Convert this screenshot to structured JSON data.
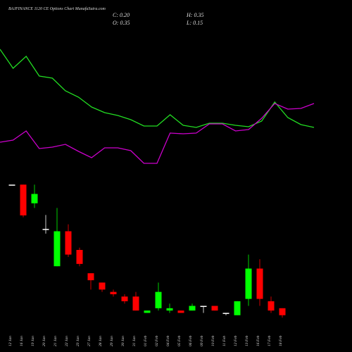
{
  "chart_data": {
    "type": "candlestick",
    "title": "BAJFINANCE 1120 CE Options Chart MunafaSutra.com",
    "summary": {
      "close": "C: 0.20",
      "high": "H: 0.35",
      "open": "O: 0.35",
      "low": "L: 0.15"
    },
    "categories": [
      "12 Jan",
      "16 Jan",
      "19 Jan",
      "20 Jan",
      "21 Jan",
      "22 Jan",
      "23 Jan",
      "27 Jan",
      "28 Jan",
      "29 Jan",
      "30 Jan",
      "31 Jan",
      "01 Feb",
      "02 Feb",
      "04 Feb",
      "05 Feb",
      "06 Feb",
      "09 Feb",
      "10 Feb",
      "11 Feb",
      "12 Feb",
      "13 Feb",
      "16 Feb",
      "17 Feb",
      "18 Feb"
    ],
    "open": [
      3.0,
      3.0,
      2.6,
      2.05,
      1.25,
      2.0,
      1.6,
      1.1,
      0.9,
      0.7,
      0.6,
      0.6,
      0.25,
      0.35,
      0.3,
      0.3,
      0.3,
      0.4,
      0.4,
      0.25,
      0.2,
      0.55,
      1.2,
      0.5,
      0.35
    ],
    "high": [
      3.0,
      3.0,
      3.0,
      2.35,
      2.5,
      2.15,
      1.65,
      1.1,
      0.9,
      0.75,
      0.65,
      0.7,
      0.3,
      0.9,
      0.45,
      0.3,
      0.45,
      0.4,
      0.4,
      0.25,
      0.5,
      1.5,
      1.4,
      0.6,
      0.35
    ],
    "low": [
      3.0,
      2.3,
      2.5,
      1.95,
      1.25,
      1.45,
      1.25,
      0.75,
      0.7,
      0.6,
      0.45,
      0.3,
      0.25,
      0.3,
      0.25,
      0.25,
      0.3,
      0.25,
      0.3,
      0.2,
      0.2,
      0.4,
      0.4,
      0.25,
      0.15
    ],
    "close": [
      3.0,
      2.34,
      2.8,
      2.05,
      2.0,
      1.5,
      1.3,
      0.95,
      0.75,
      0.65,
      0.5,
      0.3,
      0.3,
      0.7,
      0.35,
      0.25,
      0.4,
      0.4,
      0.3,
      0.25,
      0.5,
      1.2,
      0.55,
      0.3,
      0.2
    ],
    "up_color": "#00ff00",
    "down_color": "#ff0000",
    "ylim": [
      0,
      3.2
    ],
    "lines": [
      {
        "color": "#22dd22",
        "values": [
          85,
          71.5,
          80,
          66,
          64.5,
          55.5,
          51,
          44,
          40,
          38,
          35,
          30.5,
          30.5,
          38.5,
          31,
          29.5,
          32.5,
          32.5,
          31,
          30,
          34,
          47.5,
          36.5,
          31.5,
          29.5
        ]
      },
      {
        "color": "#cc00cc",
        "values": [
          19,
          20.5,
          27,
          14.5,
          15.5,
          17.5,
          12.5,
          8,
          15,
          15,
          13,
          4,
          4,
          25.5,
          25,
          25.5,
          32,
          32,
          27,
          28,
          36,
          46.5,
          42.5,
          43,
          46.5
        ]
      }
    ],
    "lines_ylim": [
      0,
      100
    ]
  }
}
